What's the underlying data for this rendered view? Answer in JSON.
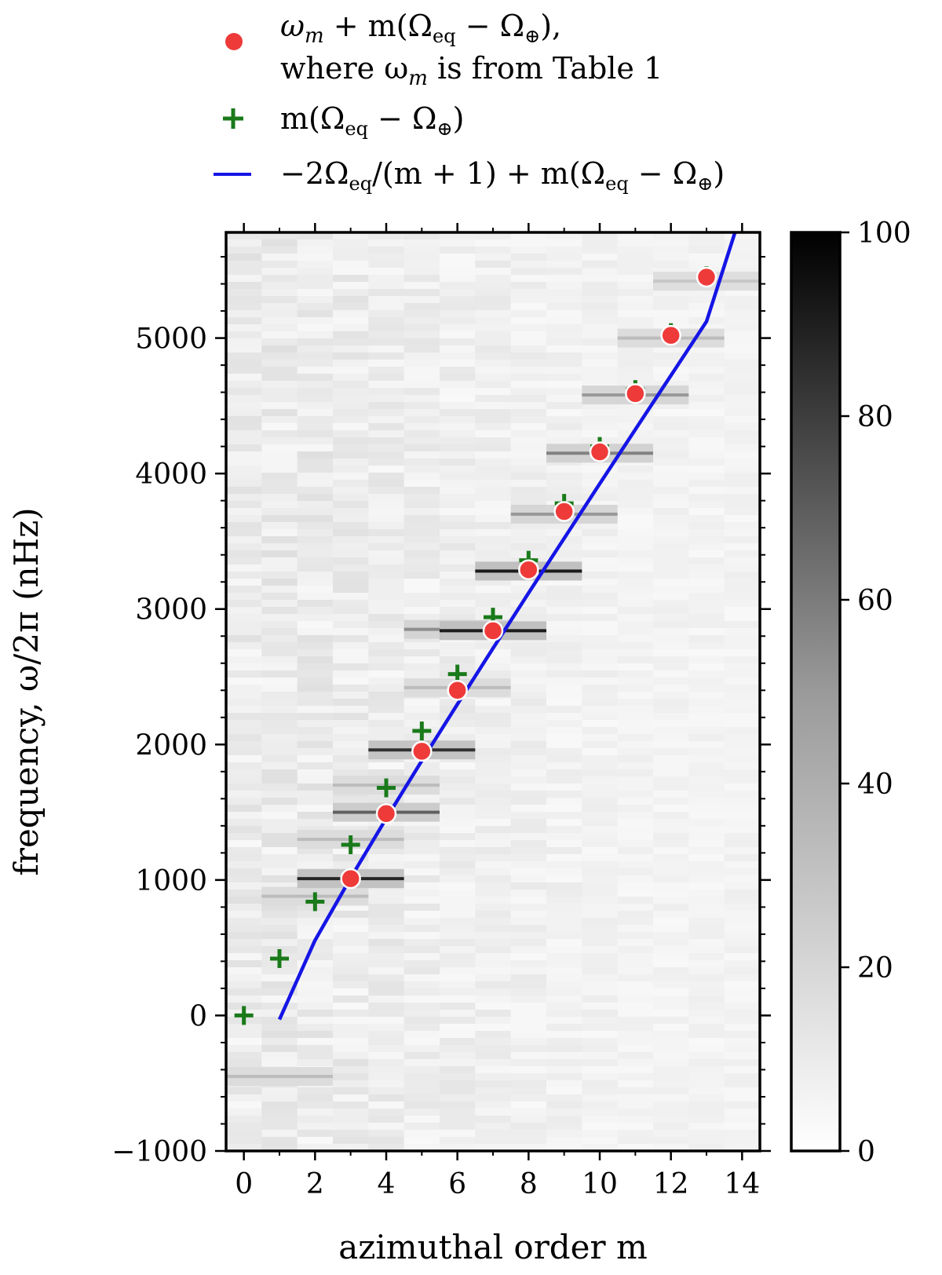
{
  "chart_data": {
    "type": "heatmap",
    "title": "",
    "xlabel": "azimuthal order m",
    "ylabel": "frequency, ω/2π (nHz)",
    "xlim": [
      -0.5,
      14.5
    ],
    "ylim": [
      -1000,
      5780
    ],
    "x_ticks": [
      0,
      2,
      4,
      6,
      8,
      10,
      12,
      14
    ],
    "x_tick_labels": [
      "0",
      "2",
      "4",
      "6",
      "8",
      "10",
      "12",
      "14"
    ],
    "y_ticks": [
      -1000,
      0,
      1000,
      2000,
      3000,
      4000,
      5000
    ],
    "y_tick_labels": [
      "−1000",
      "0",
      "1000",
      "2000",
      "3000",
      "4000",
      "5000"
    ],
    "colorbar": {
      "range": [
        0,
        100
      ],
      "ticks": [
        0,
        20,
        40,
        60,
        80,
        100
      ],
      "tick_labels": [
        "0",
        "20",
        "40",
        "60",
        "80",
        "100"
      ],
      "colormap": "Greys"
    },
    "heatmap_features": [
      {
        "m": 0,
        "frequency": -450,
        "power": 25
      },
      {
        "m": 1,
        "frequency": 880,
        "power": 25
      },
      {
        "m": 2,
        "frequency": 1010,
        "power": 90
      },
      {
        "m": 2,
        "frequency": 1300,
        "power": 25
      },
      {
        "m": 3,
        "frequency": 1500,
        "power": 65
      },
      {
        "m": 3,
        "frequency": 1700,
        "power": 25
      },
      {
        "m": 4,
        "frequency": 1960,
        "power": 85
      },
      {
        "m": 5,
        "frequency": 2420,
        "power": 25
      },
      {
        "m": 5,
        "frequency": 2850,
        "power": 45
      },
      {
        "m": 6,
        "frequency": 2840,
        "power": 95
      },
      {
        "m": 7,
        "frequency": 3280,
        "power": 95
      },
      {
        "m": 8,
        "frequency": 3700,
        "power": 40
      },
      {
        "m": 9,
        "frequency": 4150,
        "power": 50
      },
      {
        "m": 10,
        "frequency": 4580,
        "power": 40
      },
      {
        "m": 11,
        "frequency": 5000,
        "power": 25
      },
      {
        "m": 12,
        "frequency": 5420,
        "power": 20
      }
    ],
    "series": [
      {
        "name": "ω_m + m(Ω_eq − Ω_⊕), where ω_m is from Table 1",
        "marker": "circle",
        "color": "#ef3a3a",
        "x": [
          3,
          4,
          5,
          6,
          7,
          8,
          9,
          10,
          11,
          12,
          13
        ],
        "y": [
          1010,
          1490,
          1950,
          2400,
          2840,
          3290,
          3720,
          4160,
          4590,
          5020,
          5450
        ]
      },
      {
        "name": "m(Ω_eq − Ω_⊕)",
        "marker": "plus",
        "color": "#1a7a1a",
        "x": [
          0,
          1,
          2,
          3,
          4,
          5,
          6,
          7,
          8,
          9,
          10,
          11,
          12,
          13
        ],
        "y": [
          0,
          420,
          840,
          1260,
          1680,
          2100,
          2520,
          2940,
          3360,
          3780,
          4200,
          4620,
          5040,
          5460
        ]
      },
      {
        "name": "−2Ω_eq/(m+1) + m(Ω_eq − Ω_⊕)",
        "marker": "line",
        "color": "#1515e6",
        "x": [
          1,
          2,
          3,
          4,
          5,
          6,
          7,
          8,
          9,
          10,
          11,
          12,
          13,
          13.8
        ],
        "y": [
          -30,
          555,
          1015,
          1454,
          1880,
          2298,
          2710,
          3118,
          3522,
          3925,
          4325,
          4724,
          5122,
          5780
        ]
      }
    ],
    "legend": {
      "position": "top",
      "entries": [
        {
          "line1": "ω",
          "line1_sub": "m",
          "line1_rest": " + m(Ω",
          "line1_sub2": "eq",
          "line1_rest2": " − Ω",
          "line1_sub3": "⊕",
          "line1_end": "),",
          "line2_a": "where ω",
          "line2_sub": "m",
          "line2_b": " is from Table 1"
        },
        {
          "a": "m(Ω",
          "sub1": "eq",
          "b": " − Ω",
          "sub2": "⊕",
          "c": ")"
        },
        {
          "a": "−2Ω",
          "sub1": "eq",
          "b": "/(m + 1) + m(Ω",
          "sub2": "eq",
          "c": " − Ω",
          "sub3": "⊕",
          "d": ")"
        }
      ]
    }
  }
}
